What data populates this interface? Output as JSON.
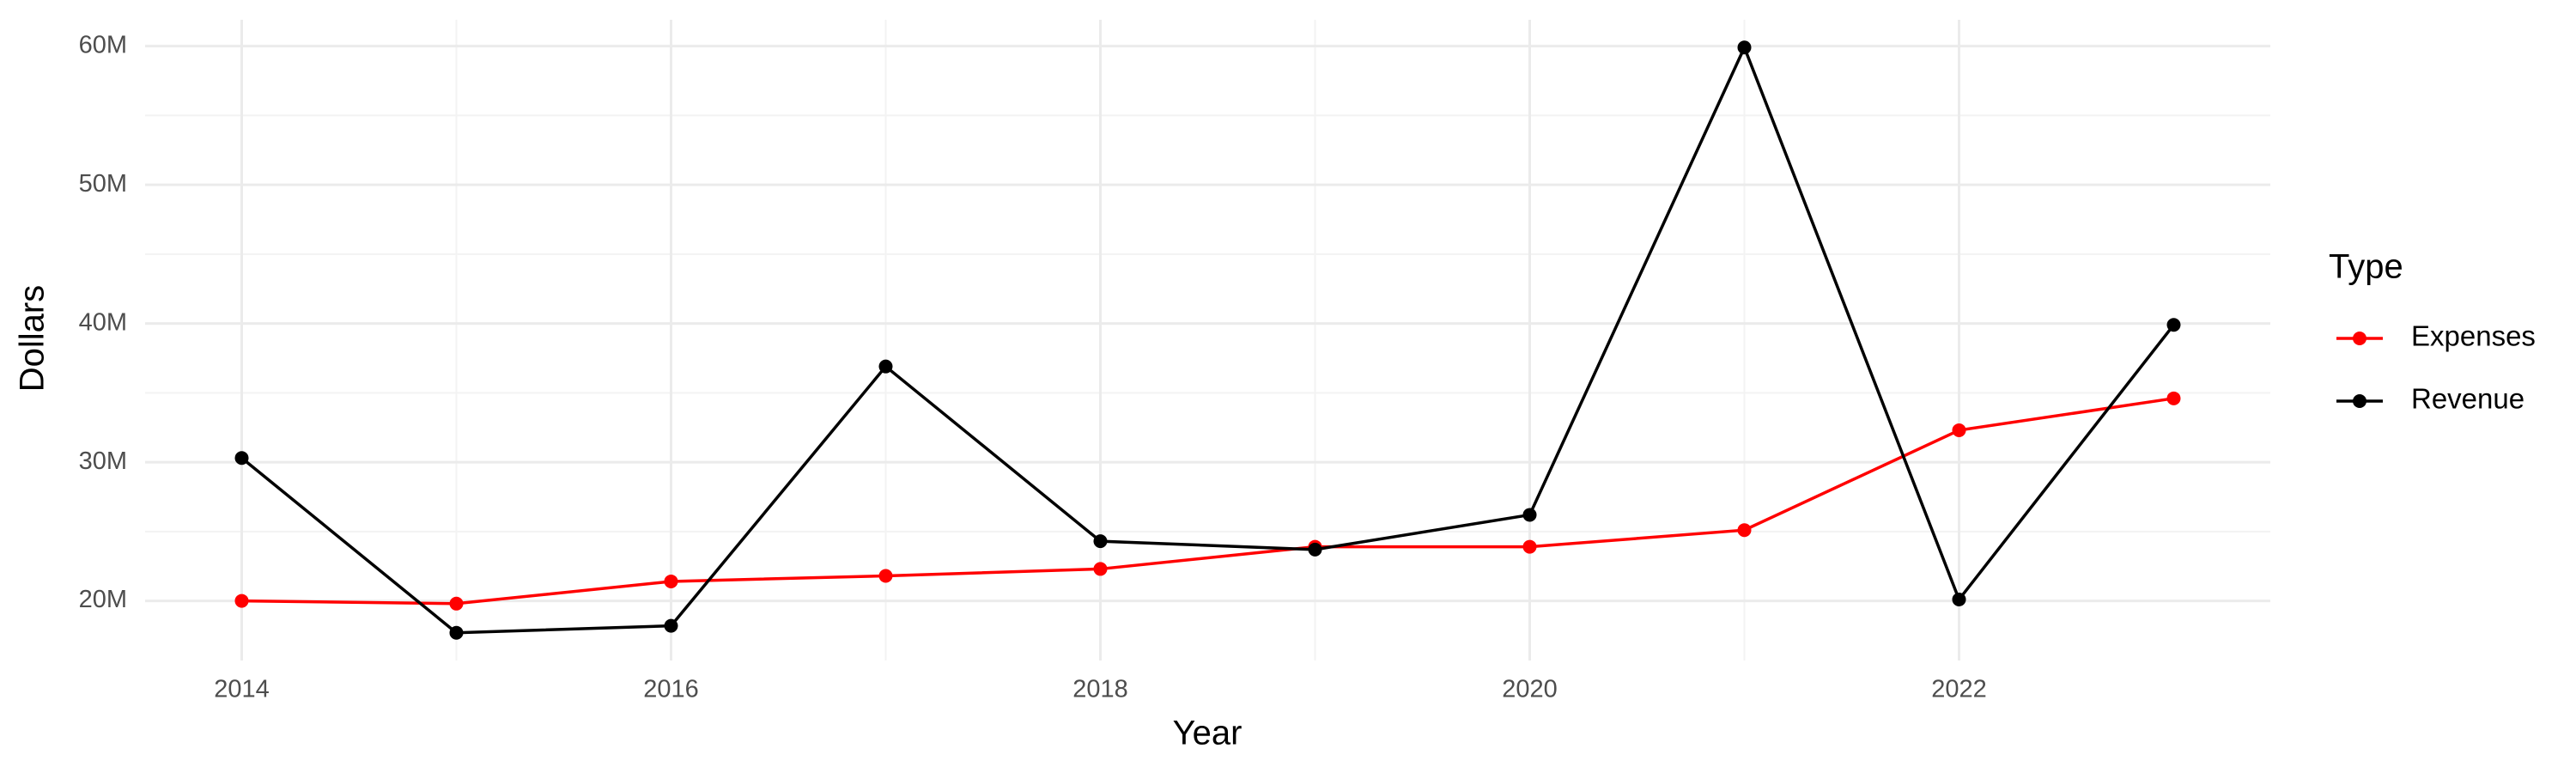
{
  "chart_data": {
    "type": "line",
    "x_label": "Year",
    "y_label": "Dollars",
    "legend_title": "Type",
    "x": [
      2014,
      2015,
      2016,
      2017,
      2018,
      2019,
      2020,
      2021,
      2022,
      2023
    ],
    "series": [
      {
        "name": "Expenses",
        "color": "#ff0000",
        "values": [
          20000000,
          19800000,
          21400000,
          21800000,
          22300000,
          23900000,
          23900000,
          25100000,
          32300000,
          34600000
        ]
      },
      {
        "name": "Revenue",
        "color": "#000000",
        "values": [
          30300000,
          17700000,
          18200000,
          36900000,
          24300000,
          23700000,
          26200000,
          59900000,
          20100000,
          39900000
        ]
      }
    ],
    "xlim": [
      2013.55,
      2023.45
    ],
    "xticks": [
      2014,
      2016,
      2018,
      2020,
      2022
    ],
    "ylim": [
      15700000,
      61900000
    ],
    "yticks": [
      {
        "value": 20000000,
        "label": "20M"
      },
      {
        "value": 30000000,
        "label": "30M"
      },
      {
        "value": 40000000,
        "label": "40M"
      },
      {
        "value": 50000000,
        "label": "50M"
      },
      {
        "value": 60000000,
        "label": "60M"
      }
    ],
    "grid": true,
    "legend": "right"
  }
}
